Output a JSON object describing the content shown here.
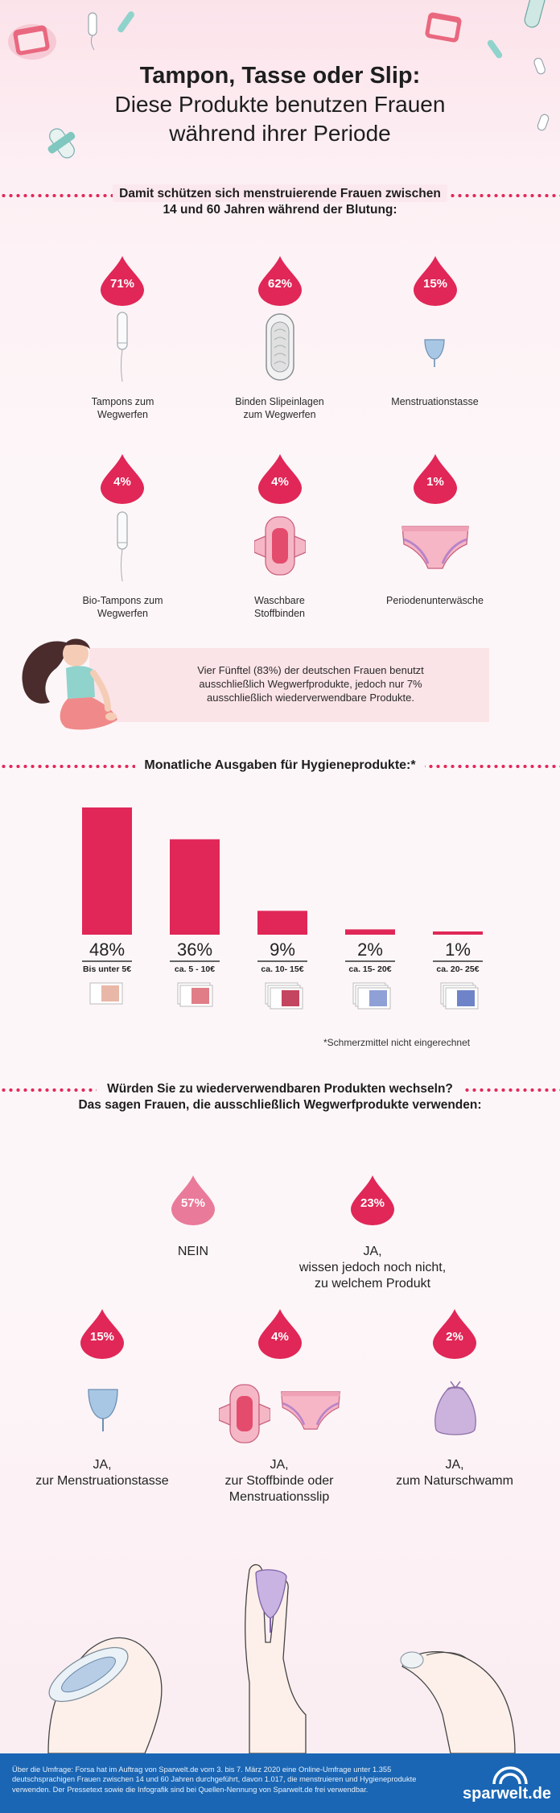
{
  "header": {
    "title": "Tampon, Tasse oder Slip:",
    "subtitle_line1": "Diese Produkte benutzen Frauen",
    "subtitle_line2": "während ihrer Periode"
  },
  "section1": {
    "heading_line1": "Damit schützen sich menstruierende Frauen zwischen",
    "heading_line2": "14 und 60 Jahren während der Blutung:",
    "items": [
      {
        "percent": "71%",
        "label_line1": "Tampons zum",
        "label_line2": "Wegwerfen"
      },
      {
        "percent": "62%",
        "label_line1": "Binden Slipeinlagen",
        "label_line2": "zum Wegwerfen"
      },
      {
        "percent": "15%",
        "label_line1": "Menstruationstasse",
        "label_line2": ""
      },
      {
        "percent": "4%",
        "label_line1": "Bio-Tampons zum",
        "label_line2": "Wegwerfen"
      },
      {
        "percent": "4%",
        "label_line1": "Waschbare",
        "label_line2": "Stoffbinden"
      },
      {
        "percent": "1%",
        "label_line1": "Periodenunterwäsche",
        "label_line2": ""
      }
    ],
    "callout_line1": "Vier Fünftel (83%) der deutschen Frauen benutzt",
    "callout_line2": "ausschließlich Wegwerfprodukte, jedoch nur 7%",
    "callout_line3": "ausschließlich wiederverwendbare Produkte."
  },
  "section2": {
    "heading": "Monatliche Ausgaben für Hygieneprodukte:*",
    "note": "*Schmerzmittel nicht eingerechnet"
  },
  "chart_data": {
    "type": "bar",
    "categories": [
      "Bis unter 5€",
      "ca. 5 - 10€",
      "ca. 10- 15€",
      "ca. 15- 20€",
      "ca. 20- 25€"
    ],
    "values": [
      48,
      36,
      9,
      2,
      1
    ],
    "value_labels": [
      "48%",
      "36%",
      "9%",
      "2%",
      "1%"
    ],
    "title": "Monatliche Ausgaben für Hygieneprodukte:*",
    "bar_color": "#e02757"
  },
  "section3": {
    "heading_line1": "Würden Sie zu wiederverwendbaren Produkten wechseln?",
    "heading_line2": "Das sagen Frauen, die ausschließlich Wegwerfprodukte verwenden:",
    "answers": [
      {
        "percent": "57%",
        "line1": "NEIN",
        "line2": "",
        "line3": ""
      },
      {
        "percent": "23%",
        "line1": "JA,",
        "line2": "wissen jedoch noch nicht,",
        "line3": "zu welchem Produkt"
      },
      {
        "percent": "15%",
        "line1": "JA,",
        "line2": "zur Menstruationstasse",
        "line3": ""
      },
      {
        "percent": "4%",
        "line1": "JA,",
        "line2": "zur Stoffbinde oder",
        "line3": "Menstruationsslip"
      },
      {
        "percent": "2%",
        "line1": "JA,",
        "line2": "zum Naturschwamm",
        "line3": ""
      }
    ]
  },
  "footer": {
    "line1": "Über die Umfrage: Forsa hat im Auftrag von Sparwelt.de vom 3. bis 7. März 2020 eine Online-Umfrage unter 1.355",
    "line2": "deutschsprachigen Frauen zwischen 14 und 60 Jahren durchgeführt, davon 1.017, die menstruieren und Hygieneprodukte",
    "line3": "verwenden. Der Pressetext sowie die Infografik sind bei Quellen-Nennung von Sparwelt.de frei verwendbar.",
    "brand": "sparwelt.de"
  },
  "colors": {
    "accent": "#e02757",
    "light_drop": "#e97a9a",
    "footer_blue": "#1a66b4",
    "callout_bg": "#fbe4e8"
  }
}
